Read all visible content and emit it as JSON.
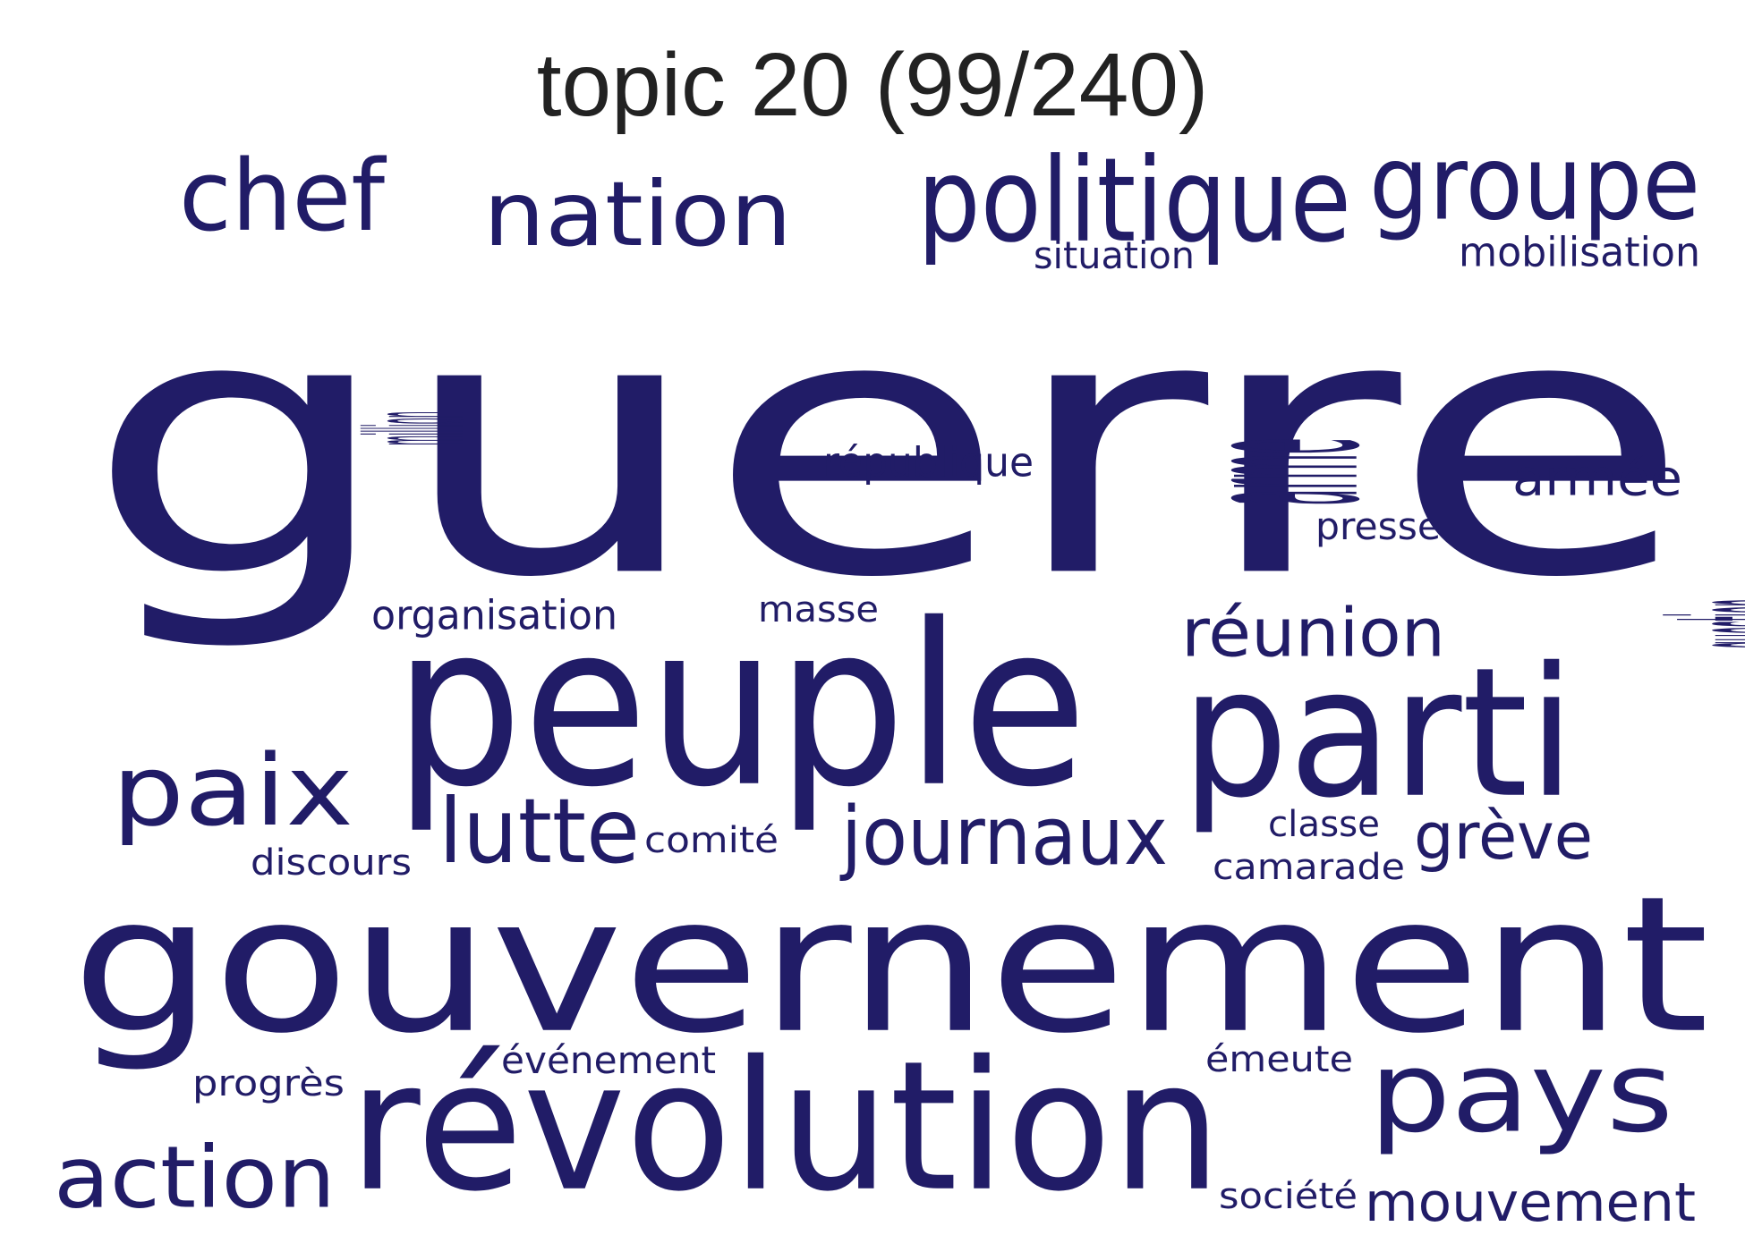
{
  "title": "topic 20 (99/240)",
  "colors": {
    "word": "#211c67",
    "title": "#222222",
    "background": "#ffffff"
  },
  "words": [
    {
      "id": "guerre",
      "text": "guerre"
    },
    {
      "id": "gouvernement",
      "text": "gouvernement"
    },
    {
      "id": "revolution",
      "text": "révolution"
    },
    {
      "id": "peuple",
      "text": "peuple"
    },
    {
      "id": "parti",
      "text": "parti"
    },
    {
      "id": "politique",
      "text": "politique"
    },
    {
      "id": "groupe",
      "text": "groupe"
    },
    {
      "id": "nation",
      "text": "nation"
    },
    {
      "id": "chef",
      "text": "chef"
    },
    {
      "id": "pays",
      "text": "pays"
    },
    {
      "id": "action",
      "text": "action"
    },
    {
      "id": "paix",
      "text": "paix"
    },
    {
      "id": "arme",
      "text": "arme"
    },
    {
      "id": "lutte",
      "text": "lutte"
    },
    {
      "id": "journaux",
      "text": "journaux"
    },
    {
      "id": "reunion",
      "text": "réunion"
    },
    {
      "id": "mouvement",
      "text": "mouvement"
    },
    {
      "id": "greve",
      "text": "grève"
    },
    {
      "id": "question",
      "text": "question"
    },
    {
      "id": "armee",
      "text": "armée"
    },
    {
      "id": "mobilisation",
      "text": "mobilisation"
    },
    {
      "id": "situation",
      "text": "situation"
    },
    {
      "id": "republique",
      "text": "république"
    },
    {
      "id": "million",
      "text": "million"
    },
    {
      "id": "organisation",
      "text": "organisation"
    },
    {
      "id": "masse",
      "text": "masse"
    },
    {
      "id": "presse",
      "text": "presse"
    },
    {
      "id": "comite",
      "text": "comité"
    },
    {
      "id": "discours",
      "text": "discours"
    },
    {
      "id": "classe",
      "text": "classe"
    },
    {
      "id": "camarade",
      "text": "camarade"
    },
    {
      "id": "evenement",
      "text": "événement"
    },
    {
      "id": "emeute",
      "text": "émeute"
    },
    {
      "id": "progres",
      "text": "progrès"
    },
    {
      "id": "societe",
      "text": "société"
    }
  ]
}
